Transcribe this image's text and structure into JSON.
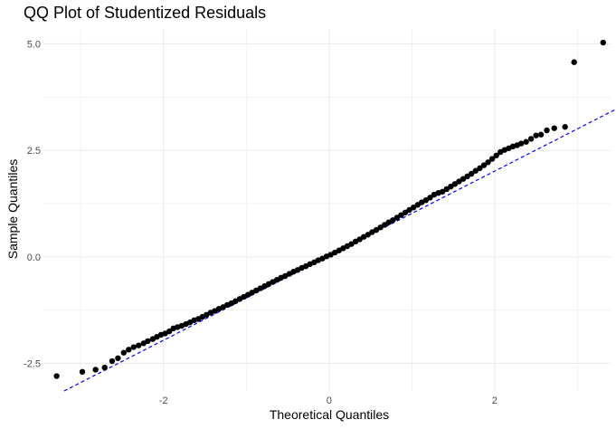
{
  "chart_data": {
    "type": "scatter",
    "title": "QQ Plot of Studentized Residuals",
    "xlabel": "Theoretical Quantiles",
    "ylabel": "Sample Quantiles",
    "xlim": [
      -3.45,
      3.4
    ],
    "ylim": [
      -3.15,
      5.35
    ],
    "x_ticks": [
      -2,
      0,
      2
    ],
    "y_ticks": [
      -2.5,
      0.0,
      2.5,
      5.0
    ],
    "x_tick_labels": [
      "-2",
      "0",
      "2"
    ],
    "y_tick_labels": [
      "-2.5",
      "0.0",
      "2.5",
      "5.0"
    ],
    "grid": true,
    "legend": "none",
    "colors": {
      "points": "#000000",
      "reference_line": "#0000ff",
      "grid": "#ebebeb"
    },
    "reference_line": {
      "style": "dashed",
      "x": [
        -3.2,
        3.6
      ],
      "y": [
        -3.15,
        3.6
      ]
    },
    "series": [
      {
        "x": [
          -3.29,
          -2.98,
          -2.82,
          -2.71,
          -2.62,
          -2.55,
          -2.48,
          -2.42,
          -2.36,
          -2.3,
          -2.24,
          -2.19,
          -2.13,
          -2.08,
          -2.03,
          -1.98,
          -1.93,
          -1.88,
          -1.83,
          -1.78,
          -1.73,
          -1.68,
          -1.63,
          -1.58,
          -1.53,
          -1.48,
          -1.43,
          -1.38,
          -1.33,
          -1.28,
          -1.23,
          -1.18,
          -1.13,
          -1.08,
          -1.03,
          -0.98,
          -0.93,
          -0.88,
          -0.83,
          -0.78,
          -0.73,
          -0.68,
          -0.63,
          -0.58,
          -0.53,
          -0.48,
          -0.43,
          -0.38,
          -0.33,
          -0.28,
          -0.23,
          -0.18,
          -0.13,
          -0.08,
          -0.03,
          0.02,
          0.07,
          0.12,
          0.17,
          0.22,
          0.27,
          0.32,
          0.37,
          0.42,
          0.47,
          0.52,
          0.57,
          0.62,
          0.67,
          0.72,
          0.77,
          0.82,
          0.87,
          0.92,
          0.97,
          1.02,
          1.07,
          1.12,
          1.17,
          1.22,
          1.27,
          1.32,
          1.37,
          1.42,
          1.47,
          1.52,
          1.57,
          1.62,
          1.67,
          1.72,
          1.77,
          1.82,
          1.87,
          1.92,
          1.97,
          2.02,
          2.07,
          2.12,
          2.17,
          2.22,
          2.27,
          2.32,
          2.38,
          2.44,
          2.5,
          2.56,
          2.63,
          2.72,
          2.85,
          2.96,
          3.31
        ],
        "y": [
          -2.8,
          -2.7,
          -2.65,
          -2.6,
          -2.45,
          -2.38,
          -2.25,
          -2.18,
          -2.12,
          -2.08,
          -2.03,
          -1.98,
          -1.93,
          -1.88,
          -1.83,
          -1.8,
          -1.75,
          -1.68,
          -1.65,
          -1.62,
          -1.58,
          -1.54,
          -1.49,
          -1.46,
          -1.41,
          -1.36,
          -1.31,
          -1.27,
          -1.22,
          -1.18,
          -1.13,
          -1.09,
          -1.04,
          -0.99,
          -0.94,
          -0.89,
          -0.84,
          -0.79,
          -0.74,
          -0.69,
          -0.64,
          -0.59,
          -0.54,
          -0.49,
          -0.45,
          -0.4,
          -0.35,
          -0.31,
          -0.26,
          -0.22,
          -0.17,
          -0.13,
          -0.08,
          -0.04,
          0.01,
          0.05,
          0.1,
          0.15,
          0.2,
          0.25,
          0.3,
          0.36,
          0.41,
          0.47,
          0.52,
          0.58,
          0.63,
          0.69,
          0.75,
          0.81,
          0.86,
          0.92,
          0.98,
          1.04,
          1.1,
          1.16,
          1.22,
          1.28,
          1.33,
          1.39,
          1.46,
          1.5,
          1.53,
          1.59,
          1.65,
          1.71,
          1.77,
          1.83,
          1.89,
          1.95,
          2.02,
          2.08,
          2.15,
          2.22,
          2.3,
          2.38,
          2.46,
          2.51,
          2.55,
          2.59,
          2.62,
          2.66,
          2.7,
          2.77,
          2.85,
          2.87,
          2.97,
          3.02,
          3.05,
          4.57,
          5.03
        ]
      }
    ]
  }
}
